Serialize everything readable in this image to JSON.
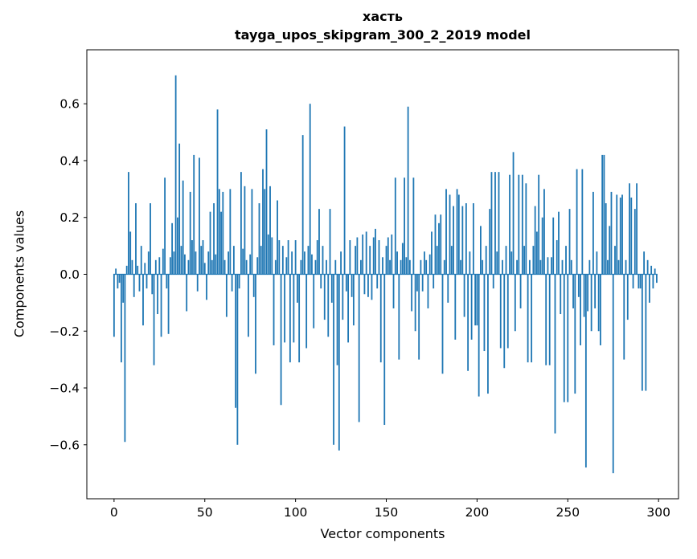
{
  "chart_data": {
    "type": "bar",
    "title_line1": "хасть",
    "title_line2": "tayga_upos_skipgram_300_2_2019 model",
    "xlabel": "Vector components",
    "ylabel": "Components values",
    "xlim": [
      -15,
      311
    ],
    "ylim": [
      -0.79,
      0.79
    ],
    "grid": false,
    "legend": "none",
    "bar_color": "#1f77b4",
    "x_start": 0,
    "xticks": [
      {
        "v": 0,
        "label": "0"
      },
      {
        "v": 50,
        "label": "50"
      },
      {
        "v": 100,
        "label": "100"
      },
      {
        "v": 150,
        "label": "150"
      },
      {
        "v": 200,
        "label": "200"
      },
      {
        "v": 250,
        "label": "250"
      },
      {
        "v": 300,
        "label": "300"
      }
    ],
    "yticks": [
      {
        "v": -0.6,
        "label": "−0.6"
      },
      {
        "v": -0.4,
        "label": "−0.4"
      },
      {
        "v": -0.2,
        "label": "−0.2"
      },
      {
        "v": 0.0,
        "label": "0.0"
      },
      {
        "v": 0.2,
        "label": "0.2"
      },
      {
        "v": 0.4,
        "label": "0.4"
      },
      {
        "v": 0.6,
        "label": "0.6"
      }
    ],
    "values": [
      -0.22,
      0.02,
      -0.05,
      -0.03,
      -0.31,
      -0.1,
      -0.59,
      0.03,
      0.36,
      0.15,
      0.05,
      -0.08,
      0.25,
      0.03,
      -0.06,
      0.1,
      -0.18,
      0.04,
      -0.05,
      0.08,
      0.25,
      -0.07,
      -0.32,
      0.05,
      -0.14,
      0.06,
      -0.22,
      0.09,
      0.34,
      -0.05,
      -0.21,
      0.06,
      0.18,
      0.08,
      0.7,
      0.2,
      0.46,
      0.1,
      0.33,
      0.07,
      -0.13,
      0.05,
      0.29,
      0.12,
      0.42,
      0.08,
      -0.06,
      0.41,
      0.1,
      0.12,
      0.04,
      -0.09,
      0.08,
      0.22,
      0.05,
      0.25,
      0.07,
      0.58,
      0.3,
      0.22,
      0.29,
      0.05,
      -0.15,
      0.08,
      0.3,
      -0.06,
      0.1,
      -0.47,
      -0.6,
      -0.05,
      0.36,
      0.09,
      0.31,
      0.05,
      -0.22,
      0.07,
      0.3,
      -0.08,
      -0.35,
      0.06,
      0.25,
      0.1,
      0.37,
      0.3,
      0.51,
      0.14,
      0.31,
      0.13,
      -0.25,
      0.05,
      0.26,
      0.12,
      -0.46,
      0.1,
      -0.24,
      0.06,
      0.12,
      -0.31,
      0.08,
      -0.24,
      0.12,
      -0.1,
      -0.31,
      0.05,
      0.49,
      0.08,
      -0.26,
      0.1,
      0.6,
      0.07,
      -0.19,
      0.05,
      0.12,
      0.23,
      -0.05,
      0.1,
      -0.16,
      0.05,
      -0.22,
      0.23,
      -0.1,
      -0.6,
      0.05,
      -0.32,
      -0.62,
      0.08,
      -0.16,
      0.52,
      -0.06,
      -0.24,
      0.12,
      -0.08,
      -0.18,
      0.1,
      0.13,
      -0.52,
      0.05,
      0.14,
      -0.07,
      0.15,
      -0.08,
      0.1,
      -0.09,
      0.13,
      0.16,
      -0.05,
      0.12,
      -0.31,
      0.06,
      -0.53,
      0.1,
      0.13,
      0.05,
      0.14,
      -0.12,
      0.34,
      0.08,
      -0.3,
      0.05,
      0.11,
      0.34,
      0.06,
      0.59,
      0.05,
      -0.13,
      0.34,
      -0.2,
      -0.06,
      -0.3,
      0.05,
      -0.06,
      0.08,
      0.05,
      -0.12,
      0.07,
      0.15,
      -0.05,
      0.21,
      0.1,
      0.18,
      0.21,
      -0.35,
      0.05,
      0.3,
      -0.1,
      0.28,
      0.1,
      0.24,
      -0.23,
      0.3,
      0.28,
      0.05,
      0.24,
      -0.15,
      0.25,
      -0.34,
      0.08,
      -0.23,
      0.25,
      -0.18,
      -0.18,
      -0.43,
      0.17,
      0.05,
      -0.27,
      0.1,
      -0.42,
      0.23,
      0.36,
      -0.05,
      0.36,
      0.08,
      0.36,
      -0.26,
      0.05,
      -0.33,
      0.1,
      -0.26,
      0.35,
      0.08,
      0.43,
      -0.2,
      0.05,
      0.35,
      -0.12,
      0.35,
      0.1,
      0.32,
      -0.31,
      0.05,
      -0.31,
      0.1,
      0.24,
      0.15,
      0.35,
      0.05,
      0.2,
      0.3,
      -0.32,
      0.06,
      -0.32,
      0.06,
      0.2,
      -0.56,
      0.12,
      0.22,
      -0.14,
      0.05,
      -0.45,
      0.1,
      -0.45,
      0.23,
      0.05,
      -0.12,
      -0.42,
      0.37,
      -0.08,
      -0.25,
      0.37,
      -0.15,
      -0.68,
      -0.13,
      0.05,
      -0.2,
      0.29,
      -0.12,
      0.08,
      -0.2,
      -0.25,
      0.42,
      0.42,
      0.25,
      0.05,
      0.17,
      0.29,
      -0.7,
      0.1,
      0.28,
      0.05,
      0.27,
      0.28,
      -0.3,
      0.05,
      -0.16,
      0.32,
      0.27,
      -0.05,
      0.23,
      0.32,
      -0.05,
      -0.05,
      -0.41,
      0.08,
      -0.41,
      0.05,
      -0.1,
      0.03,
      -0.05,
      0.02,
      -0.03
    ]
  }
}
